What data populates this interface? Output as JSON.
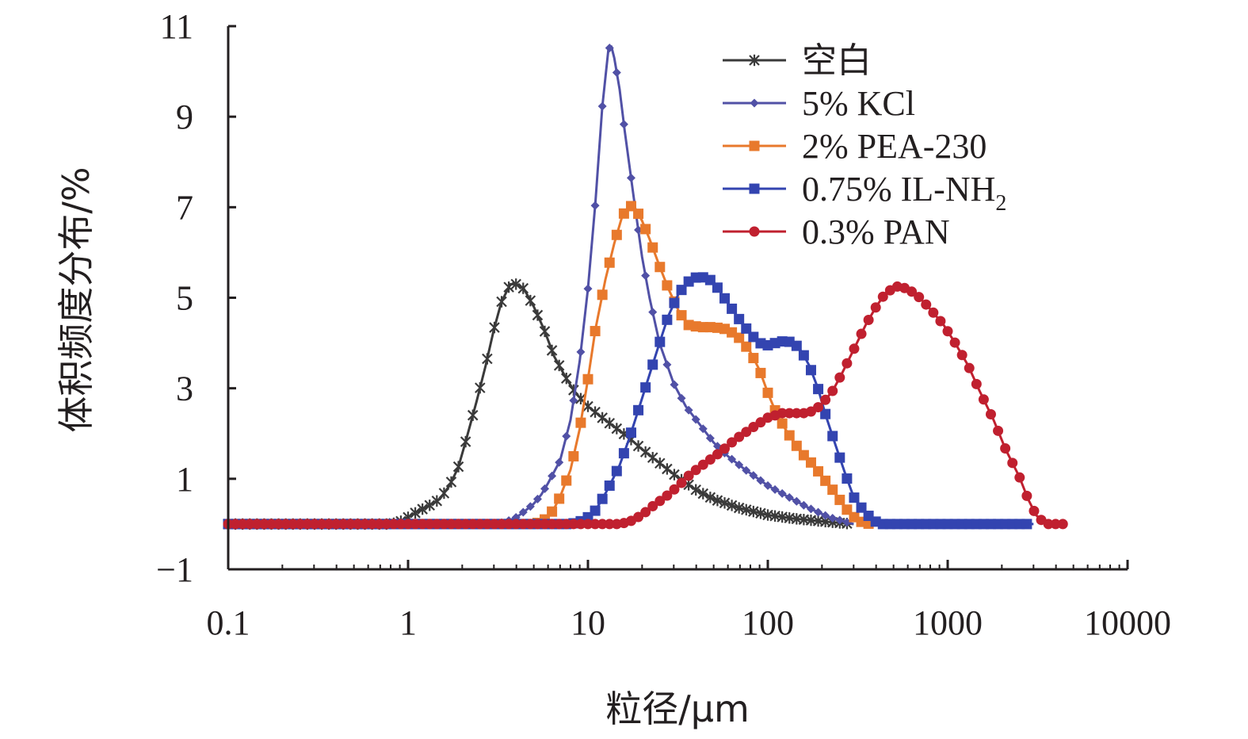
{
  "chart_data": {
    "type": "line",
    "title": "",
    "xlabel": "粒径/μm",
    "ylabel": "体积频度分布/%",
    "xscale": "log",
    "xlim": [
      0.1,
      10000
    ],
    "ylim": [
      -1,
      11
    ],
    "x_ticks": [
      "0.1",
      "1",
      "10",
      "100",
      "1000",
      "10000"
    ],
    "y_ticks": [
      "−1",
      "1",
      "3",
      "5",
      "7",
      "9",
      "11"
    ],
    "legend_position": "top-right",
    "series": [
      {
        "name": "空白",
        "legend_label": "空白",
        "color": "#3a3a3a",
        "marker": "asterisk",
        "points": [
          [
            0.1,
            0
          ],
          [
            0.5,
            0
          ],
          [
            0.8,
            0
          ],
          [
            0.9,
            0.05
          ],
          [
            1,
            0.15
          ],
          [
            1.1,
            0.25
          ],
          [
            1.3,
            0.4
          ],
          [
            1.5,
            0.55
          ],
          [
            1.7,
            0.85
          ],
          [
            1.9,
            1.25
          ],
          [
            2.1,
            1.85
          ],
          [
            2.4,
            2.7
          ],
          [
            2.7,
            3.5
          ],
          [
            3,
            4.3
          ],
          [
            3.3,
            4.9
          ],
          [
            3.7,
            5.3
          ],
          [
            4,
            5.3
          ],
          [
            4.4,
            5.2
          ],
          [
            5,
            4.8
          ],
          [
            5.7,
            4.3
          ],
          [
            6.5,
            3.7
          ],
          [
            7.5,
            3.25
          ],
          [
            8.5,
            2.9
          ],
          [
            10,
            2.6
          ],
          [
            12,
            2.35
          ],
          [
            14,
            2.15
          ],
          [
            17,
            1.9
          ],
          [
            20,
            1.65
          ],
          [
            25,
            1.35
          ],
          [
            30,
            1.1
          ],
          [
            40,
            0.75
          ],
          [
            50,
            0.55
          ],
          [
            70,
            0.35
          ],
          [
            100,
            0.2
          ],
          [
            140,
            0.12
          ],
          [
            200,
            0.06
          ],
          [
            260,
            0.02
          ],
          [
            300,
            0
          ]
        ]
      },
      {
        "name": "5% KCl",
        "legend_label": "5% KCl",
        "color": "#5151a6",
        "marker": "diamond",
        "points": [
          [
            0.1,
            0
          ],
          [
            1,
            0
          ],
          [
            3,
            0
          ],
          [
            3.5,
            0.05
          ],
          [
            4,
            0.15
          ],
          [
            4.5,
            0.3
          ],
          [
            5,
            0.45
          ],
          [
            5.5,
            0.65
          ],
          [
            6,
            0.9
          ],
          [
            7,
            1.4
          ],
          [
            8,
            2.3
          ],
          [
            9,
            3.6
          ],
          [
            10,
            5.2
          ],
          [
            11,
            7.1
          ],
          [
            12,
            9.2
          ],
          [
            13,
            10.5
          ],
          [
            13.5,
            10.55
          ],
          [
            14,
            10.3
          ],
          [
            15,
            9.6
          ],
          [
            16,
            8.7
          ],
          [
            18,
            7.2
          ],
          [
            20,
            5.9
          ],
          [
            22,
            5
          ],
          [
            25,
            4
          ],
          [
            30,
            3.1
          ],
          [
            35,
            2.6
          ],
          [
            40,
            2.3
          ],
          [
            50,
            1.8
          ],
          [
            60,
            1.5
          ],
          [
            75,
            1.2
          ],
          [
            100,
            0.85
          ],
          [
            130,
            0.6
          ],
          [
            170,
            0.35
          ],
          [
            220,
            0.15
          ],
          [
            270,
            0.05
          ],
          [
            300,
            0
          ]
        ]
      },
      {
        "name": "2% PEA-230",
        "legend_label": "2% PEA-230",
        "color": "#e8792c",
        "marker": "square",
        "points": [
          [
            0.1,
            0
          ],
          [
            1,
            0
          ],
          [
            5,
            0
          ],
          [
            5.5,
            0.05
          ],
          [
            6,
            0.15
          ],
          [
            6.5,
            0.35
          ],
          [
            7,
            0.6
          ],
          [
            8,
            1.2
          ],
          [
            9,
            2.1
          ],
          [
            10,
            3.2
          ],
          [
            11,
            4.3
          ],
          [
            12.5,
            5.4
          ],
          [
            14,
            6.2
          ],
          [
            15.5,
            6.8
          ],
          [
            17,
            7.05
          ],
          [
            18.5,
            6.95
          ],
          [
            20,
            6.7
          ],
          [
            22,
            6.3
          ],
          [
            25,
            5.7
          ],
          [
            28,
            5.2
          ],
          [
            32,
            4.7
          ],
          [
            36,
            4.4
          ],
          [
            42,
            4.35
          ],
          [
            50,
            4.35
          ],
          [
            60,
            4.3
          ],
          [
            70,
            4.1
          ],
          [
            80,
            3.8
          ],
          [
            90,
            3.4
          ],
          [
            100,
            2.9
          ],
          [
            110,
            2.5
          ],
          [
            125,
            2.1
          ],
          [
            140,
            1.8
          ],
          [
            160,
            1.5
          ],
          [
            180,
            1.3
          ],
          [
            200,
            1.05
          ],
          [
            230,
            0.75
          ],
          [
            260,
            0.45
          ],
          [
            290,
            0.2
          ],
          [
            330,
            0.05
          ],
          [
            370,
            0
          ]
        ]
      },
      {
        "name": "0.75% IL-NH2",
        "legend_label": "0.75% IL-NH",
        "legend_sub": "2",
        "color": "#3344b0",
        "marker": "square",
        "points": [
          [
            0.1,
            0
          ],
          [
            1,
            0
          ],
          [
            8,
            0
          ],
          [
            9,
            0.05
          ],
          [
            10,
            0.15
          ],
          [
            11,
            0.3
          ],
          [
            12,
            0.55
          ],
          [
            13,
            0.8
          ],
          [
            15,
            1.3
          ],
          [
            17,
            1.9
          ],
          [
            19,
            2.5
          ],
          [
            22,
            3.3
          ],
          [
            25,
            4
          ],
          [
            28,
            4.6
          ],
          [
            32,
            5.1
          ],
          [
            36,
            5.35
          ],
          [
            40,
            5.45
          ],
          [
            45,
            5.45
          ],
          [
            50,
            5.35
          ],
          [
            55,
            5.1
          ],
          [
            62,
            4.8
          ],
          [
            70,
            4.5
          ],
          [
            80,
            4.2
          ],
          [
            90,
            4
          ],
          [
            100,
            3.95
          ],
          [
            110,
            4
          ],
          [
            125,
            4.05
          ],
          [
            140,
            4
          ],
          [
            155,
            3.8
          ],
          [
            170,
            3.5
          ],
          [
            190,
            3
          ],
          [
            210,
            2.4
          ],
          [
            240,
            1.7
          ],
          [
            270,
            1.1
          ],
          [
            300,
            0.6
          ],
          [
            340,
            0.3
          ],
          [
            380,
            0.1
          ],
          [
            420,
            0
          ],
          [
            3000,
            0
          ]
        ]
      },
      {
        "name": "0.3% PAN",
        "legend_label": "0.3% PAN",
        "color": "#c0202f",
        "marker": "circle",
        "points": [
          [
            0.1,
            0
          ],
          [
            1,
            0
          ],
          [
            10,
            0
          ],
          [
            15,
            0
          ],
          [
            17,
            0.05
          ],
          [
            20,
            0.2
          ],
          [
            23,
            0.4
          ],
          [
            27,
            0.6
          ],
          [
            32,
            0.85
          ],
          [
            37,
            1.1
          ],
          [
            45,
            1.35
          ],
          [
            55,
            1.6
          ],
          [
            65,
            1.85
          ],
          [
            80,
            2.1
          ],
          [
            100,
            2.35
          ],
          [
            120,
            2.45
          ],
          [
            140,
            2.45
          ],
          [
            160,
            2.45
          ],
          [
            180,
            2.5
          ],
          [
            200,
            2.65
          ],
          [
            230,
            2.95
          ],
          [
            260,
            3.35
          ],
          [
            300,
            3.85
          ],
          [
            350,
            4.4
          ],
          [
            400,
            4.8
          ],
          [
            450,
            5.1
          ],
          [
            520,
            5.25
          ],
          [
            600,
            5.2
          ],
          [
            700,
            5
          ],
          [
            800,
            4.75
          ],
          [
            950,
            4.4
          ],
          [
            1100,
            4
          ],
          [
            1300,
            3.5
          ],
          [
            1500,
            2.95
          ],
          [
            1800,
            2.3
          ],
          [
            2100,
            1.65
          ],
          [
            2500,
            1.05
          ],
          [
            2800,
            0.55
          ],
          [
            3100,
            0.2
          ],
          [
            3500,
            0
          ],
          [
            4500,
            0
          ]
        ]
      }
    ]
  }
}
